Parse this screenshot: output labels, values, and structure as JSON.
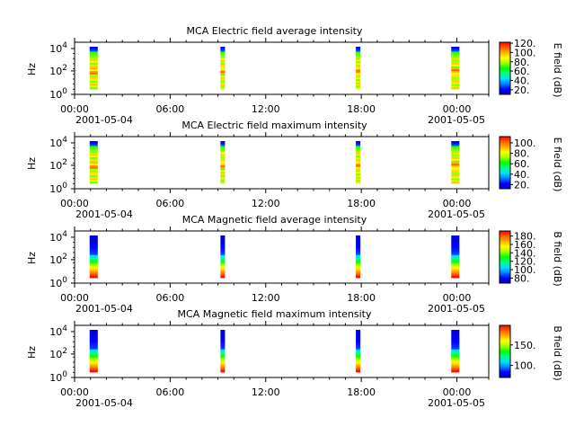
{
  "chart_data": [
    {
      "type": "heatmap",
      "title": "MCA  Electric field average intensity",
      "ylabel": "Hz",
      "colorbar_label": "E field (dB)",
      "colorbar_ticks": [
        "20.",
        "40.",
        "60.",
        "80.",
        "100.",
        "120."
      ],
      "colorbar_range": [
        10,
        122
      ],
      "y_ticks": [
        {
          "exp": "0"
        },
        {
          "exp": "2"
        },
        {
          "exp": "4"
        }
      ],
      "x_ticks": [
        "00:00",
        "06:00",
        "12:00",
        "18:00",
        "00:00"
      ],
      "x_date_left": "2001-05-04",
      "x_date_right": "2001-05-05",
      "data_bursts_hours": [
        1.2,
        9.3,
        17.8,
        23.9
      ],
      "scale": "log"
    },
    {
      "type": "heatmap",
      "title": "MCA  Electric field maximum intensity",
      "ylabel": "Hz",
      "colorbar_label": "E field (dB)",
      "colorbar_ticks": [
        "20.",
        "40.",
        "60.",
        "80.",
        "100."
      ],
      "colorbar_range": [
        12,
        112
      ],
      "y_ticks": [
        {
          "exp": "0"
        },
        {
          "exp": "2"
        },
        {
          "exp": "4"
        }
      ],
      "x_ticks": [
        "00:00",
        "06:00",
        "12:00",
        "18:00",
        "00:00"
      ],
      "x_date_left": "2001-05-04",
      "x_date_right": "2001-05-05",
      "data_bursts_hours": [
        1.2,
        9.3,
        17.8,
        23.9
      ],
      "scale": "log"
    },
    {
      "type": "heatmap",
      "title": "MCA  Magnetic field average intensity",
      "ylabel": "Hz",
      "colorbar_label": "B field (dB)",
      "colorbar_ticks": [
        "80.",
        "100.",
        "120.",
        "140.",
        "160.",
        "180."
      ],
      "colorbar_range": [
        68,
        192
      ],
      "y_ticks": [
        {
          "exp": "0"
        },
        {
          "exp": "2"
        },
        {
          "exp": "4"
        }
      ],
      "x_ticks": [
        "00:00",
        "06:00",
        "12:00",
        "18:00",
        "00:00"
      ],
      "x_date_left": "2001-05-04",
      "x_date_right": "2001-05-05",
      "data_bursts_hours": [
        1.2,
        9.3,
        17.8,
        23.9
      ],
      "scale": "log"
    },
    {
      "type": "heatmap",
      "title": "MCA  Magnetic field maximum intensity",
      "ylabel": "Hz",
      "colorbar_label": "B field (dB)",
      "colorbar_ticks": [
        "100.",
        "150."
      ],
      "colorbar_range": [
        70,
        198
      ],
      "y_ticks": [
        {
          "exp": "0"
        },
        {
          "exp": "2"
        },
        {
          "exp": "4"
        }
      ],
      "x_ticks": [
        "00:00",
        "06:00",
        "12:00",
        "18:00",
        "00:00"
      ],
      "x_date_left": "2001-05-04",
      "x_date_right": "2001-05-05",
      "data_bursts_hours": [
        1.2,
        9.3,
        17.8,
        23.9
      ],
      "scale": "log"
    }
  ],
  "colors": {
    "colormap": [
      "#0000c8",
      "#0000ff",
      "#0080ff",
      "#00e0ff",
      "#00ff80",
      "#00ff00",
      "#a0ff00",
      "#ffff00",
      "#ffb000",
      "#ff6000",
      "#ff0000"
    ],
    "axis": "#000000"
  }
}
